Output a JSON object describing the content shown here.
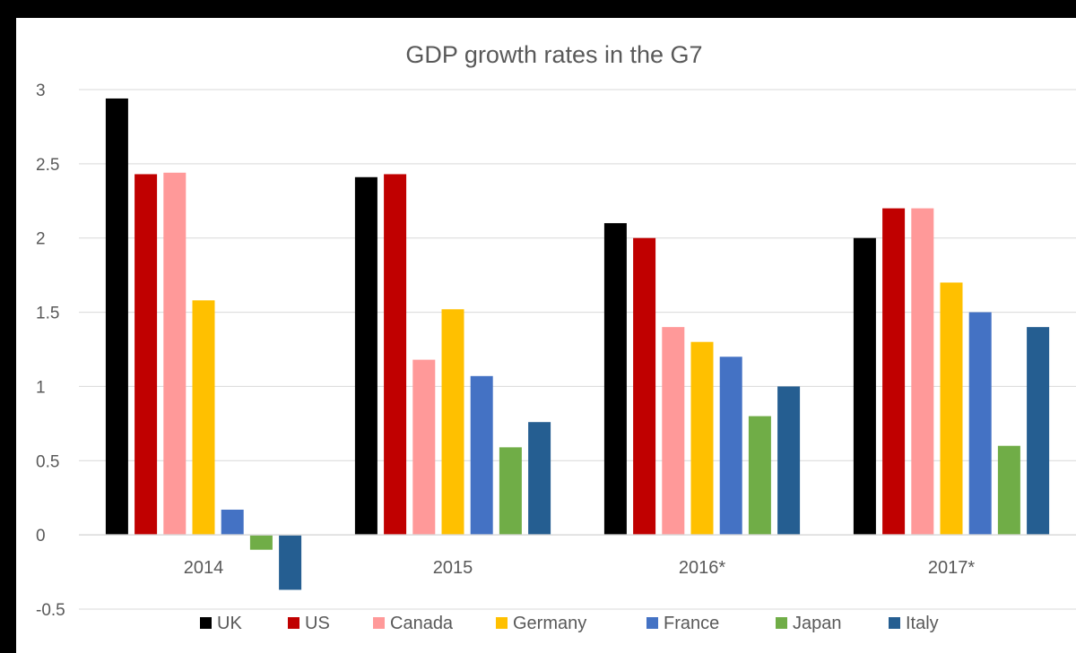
{
  "chart_data": {
    "type": "bar",
    "title": "GDP growth rates in the G7",
    "xlabel": "",
    "ylabel": "",
    "categories": [
      "2014",
      "2015",
      "2016*",
      "2017*"
    ],
    "ylim": [
      -0.5,
      3
    ],
    "yticks": [
      "3",
      "2.5",
      "2",
      "1.5",
      "1",
      "0.5",
      "0",
      "-0.5"
    ],
    "ytick_values": [
      3,
      2.5,
      2,
      1.5,
      1,
      0.5,
      0,
      -0.5
    ],
    "grid": true,
    "legend_position": "bottom",
    "series": [
      {
        "name": "UK",
        "color": "#000000",
        "values": [
          2.94,
          2.41,
          2.1,
          2.0
        ]
      },
      {
        "name": "US",
        "color": "#c00000",
        "values": [
          2.43,
          2.43,
          2.0,
          2.2
        ]
      },
      {
        "name": "Canada",
        "color": "#ff9999",
        "values": [
          2.44,
          1.18,
          1.4,
          2.2
        ]
      },
      {
        "name": "Germany",
        "color": "#ffc000",
        "values": [
          1.58,
          1.52,
          1.3,
          1.7
        ]
      },
      {
        "name": "France",
        "color": "#4472c4",
        "values": [
          0.17,
          1.07,
          1.2,
          1.5
        ]
      },
      {
        "name": "Japan",
        "color": "#70ad47",
        "values": [
          -0.1,
          0.59,
          0.8,
          0.6
        ]
      },
      {
        "name": "Italy",
        "color": "#255e91",
        "values": [
          -0.37,
          0.76,
          1.0,
          1.4
        ]
      }
    ]
  }
}
